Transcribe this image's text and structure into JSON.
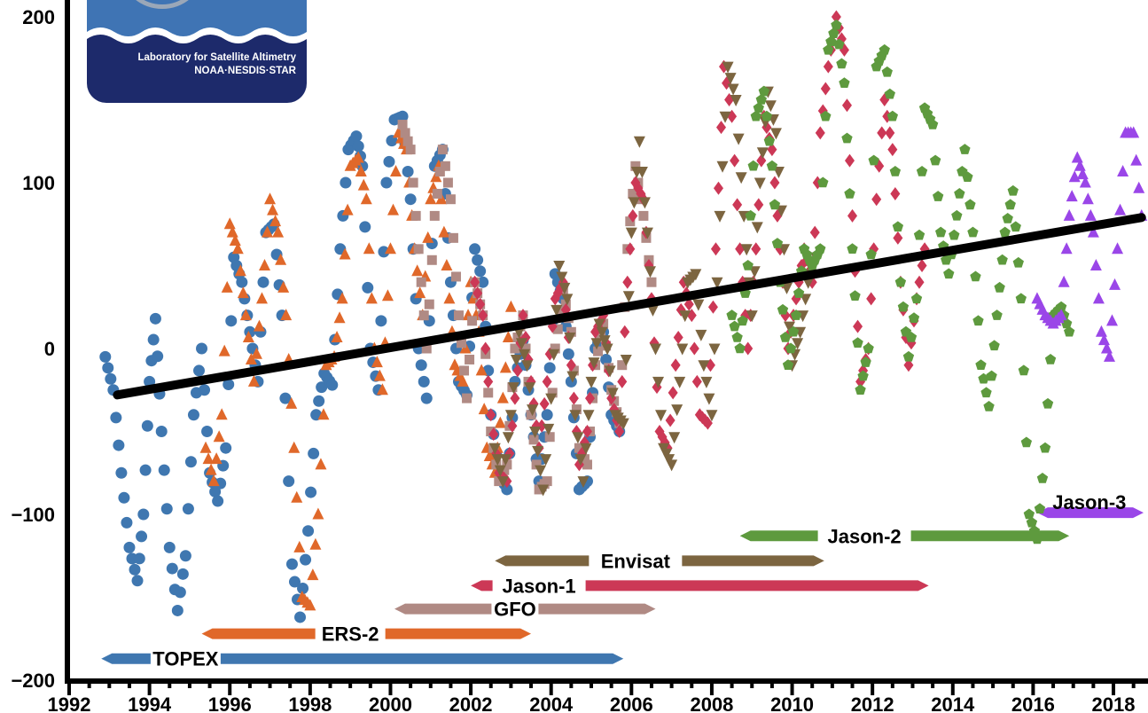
{
  "logo": {
    "line1": "Laboratory for Satellite Altimetry",
    "line2": "NOAA·NESDIS·STAR"
  },
  "colors": {
    "topex": "#3f77b0",
    "ers2": "#e0682a",
    "gfo": "#b08a84",
    "jason1": "#cc3856",
    "envisat": "#7c6540",
    "jason2": "#5e9a3e",
    "jason3": "#9a46e8",
    "trend": "#000000"
  },
  "chart_data": {
    "type": "scatter",
    "title": "",
    "xlabel": "",
    "ylabel": "",
    "xlim": [
      1992,
      2018.75
    ],
    "ylim": [
      -200,
      200
    ],
    "x_ticks": [
      "1992",
      "1994",
      "1996",
      "1998",
      "2000",
      "2002",
      "2004",
      "2006",
      "2008",
      "2010",
      "2012",
      "2014",
      "2016",
      "2018"
    ],
    "y_ticks": [
      "−200",
      "−100",
      "0",
      "100",
      "200"
    ],
    "trend_line": {
      "x": [
        1993.2,
        2018.7
      ],
      "y": [
        -28,
        79
      ]
    },
    "series": [
      {
        "name": "TOPEX",
        "marker": "circle",
        "color": "#3f77b0",
        "x": [
          1992.9,
          1993.1,
          1993.3,
          1993.5,
          1993.7,
          1993.85,
          1994.0,
          1994.15,
          1994.3,
          1994.5,
          1994.7,
          1994.9,
          1995.1,
          1995.3,
          1995.5,
          1995.7,
          1995.9,
          1996.1,
          1996.3,
          1996.5,
          1996.7,
          1996.9,
          1997.1,
          1997.3,
          1997.55,
          1997.75,
          1997.95,
          1998.15,
          1998.35,
          1998.55,
          1998.75,
          1998.95,
          1999.15,
          1999.3,
          1999.5,
          1999.7,
          1999.9,
          2000.1,
          2000.3,
          2000.5,
          2000.7,
          2000.9,
          2001.1,
          2001.3,
          2001.5,
          2001.7,
          2001.9,
          2002.1,
          2002.3,
          2002.5,
          2002.7,
          2002.9,
          2003.1,
          2003.3,
          2003.5,
          2003.7,
          2003.9,
          2004.1,
          2004.3,
          2004.5,
          2004.7,
          2004.9,
          2005.1,
          2005.3,
          2005.5,
          2005.7
        ],
        "y": [
          -5,
          -25,
          -75,
          -120,
          -140,
          -100,
          -20,
          18,
          -50,
          -120,
          -158,
          -125,
          -40,
          0,
          -75,
          -92,
          -60,
          55,
          40,
          10,
          -20,
          70,
          75,
          20,
          -130,
          -162,
          -110,
          -40,
          -15,
          -22,
          60,
          120,
          128,
          110,
          0,
          -25,
          100,
          138,
          140,
          90,
          0,
          -30,
          110,
          120,
          40,
          -20,
          -28,
          60,
          40,
          -40,
          -75,
          -85,
          -20,
          5,
          -40,
          -80,
          -40,
          45,
          30,
          -20,
          -85,
          -80,
          0,
          10,
          -40,
          -50
        ]
      },
      {
        "name": "ERS-2",
        "marker": "triangle-up",
        "color": "#e0682a",
        "x": [
          1995.4,
          1995.6,
          1995.8,
          1996.0,
          1996.2,
          1996.4,
          1996.6,
          1996.8,
          1997.0,
          1997.2,
          1997.4,
          1997.6,
          1997.8,
          1998.0,
          1998.2,
          1998.4,
          1998.6,
          1998.8,
          1999.0,
          1999.2,
          1999.4,
          1999.6,
          1999.8,
          2000.0,
          2000.2,
          2000.4,
          2000.6,
          2000.8,
          2001.0,
          2001.2,
          2001.4,
          2001.6,
          2001.8,
          2002.0,
          2002.2,
          2002.4,
          2002.6,
          2002.8,
          2003.0
        ],
        "y": [
          -60,
          -80,
          -40,
          75,
          60,
          20,
          -20,
          30,
          90,
          70,
          20,
          -60,
          -150,
          -155,
          -100,
          -10,
          -5,
          30,
          110,
          115,
          90,
          0,
          -25,
          60,
          130,
          120,
          60,
          20,
          90,
          110,
          50,
          -10,
          -20,
          40,
          10,
          -60,
          -75,
          -30,
          25
        ]
      },
      {
        "name": "GFO",
        "marker": "square",
        "color": "#b08a84",
        "x": [
          2000.3,
          2000.5,
          2000.7,
          2000.9,
          2001.1,
          2001.3,
          2001.5,
          2001.7,
          2001.9,
          2002.1,
          2002.3,
          2002.5,
          2002.7,
          2002.9,
          2003.1,
          2003.3,
          2003.5,
          2003.7,
          2003.9,
          2004.1,
          2004.3,
          2004.5,
          2004.7,
          2004.9,
          2005.1,
          2005.3,
          2005.5,
          2005.7,
          2005.9,
          2006.1,
          2006.3,
          2006.5
        ],
        "y": [
          135,
          120,
          60,
          0,
          80,
          120,
          90,
          20,
          -30,
          40,
          20,
          -50,
          -80,
          -70,
          0,
          20,
          -40,
          -85,
          -80,
          0,
          35,
          10,
          -60,
          -70,
          -10,
          15,
          -25,
          -45,
          60,
          110,
          80,
          40
        ]
      },
      {
        "name": "Jason-1",
        "marker": "diamond",
        "color": "#cc3856",
        "x": [
          2002.1,
          2002.3,
          2002.5,
          2002.7,
          2002.9,
          2003.1,
          2003.3,
          2003.5,
          2003.7,
          2003.9,
          2004.1,
          2004.3,
          2004.5,
          2004.7,
          2004.9,
          2005.1,
          2005.3,
          2005.5,
          2005.7,
          2005.9,
          2006.1,
          2006.3,
          2006.5,
          2006.7,
          2006.9,
          2007.1,
          2007.3,
          2007.5,
          2007.7,
          2007.9,
          2008.1,
          2008.3,
          2008.5,
          2008.7,
          2008.9,
          2009.1,
          2009.3,
          2009.5,
          2009.7,
          2009.9,
          2010.1,
          2010.3,
          2010.5,
          2010.7,
          2010.9,
          2011.1,
          2011.3,
          2011.5,
          2011.7,
          2011.9,
          2012.1,
          2012.3,
          2012.5,
          2012.7,
          2012.9,
          2013.1,
          2013.3
        ],
        "y": [
          40,
          20,
          -40,
          -75,
          -80,
          -30,
          20,
          -20,
          -60,
          -20,
          30,
          40,
          -10,
          -70,
          -50,
          10,
          20,
          -30,
          -50,
          40,
          100,
          90,
          30,
          -50,
          -60,
          -10,
          40,
          20,
          -40,
          -45,
          60,
          170,
          140,
          60,
          0,
          60,
          140,
          120,
          60,
          0,
          30,
          60,
          40,
          130,
          170,
          200,
          180,
          80,
          -20,
          0,
          90,
          150,
          120,
          40,
          -10,
          30,
          60
        ]
      },
      {
        "name": "Envisat",
        "marker": "triangle-down",
        "color": "#7c6540",
        "x": [
          2002.6,
          2002.8,
          2003.0,
          2003.2,
          2003.4,
          2003.6,
          2003.8,
          2004.0,
          2004.2,
          2004.4,
          2004.6,
          2004.8,
          2005.0,
          2005.2,
          2005.4,
          2005.6,
          2005.8,
          2006.0,
          2006.2,
          2006.4,
          2006.6,
          2006.8,
          2007.0,
          2007.2,
          2007.4,
          2007.6,
          2007.8,
          2008.0,
          2008.2,
          2008.4,
          2008.6,
          2008.8,
          2009.0,
          2009.2,
          2009.4,
          2009.6,
          2009.8,
          2010.0,
          2010.2,
          2010.4,
          2010.6
        ],
        "y": [
          -60,
          -80,
          -40,
          10,
          -10,
          -50,
          -85,
          -30,
          50,
          30,
          -40,
          -80,
          -20,
          15,
          0,
          -40,
          -45,
          70,
          125,
          70,
          0,
          -60,
          -70,
          -20,
          40,
          45,
          -10,
          -40,
          80,
          170,
          150,
          80,
          20,
          100,
          155,
          130,
          60,
          -10,
          10,
          40,
          55
        ]
      },
      {
        "name": "Jason-2",
        "marker": "pentagon",
        "color": "#5e9a3e",
        "x": [
          2008.5,
          2008.7,
          2008.9,
          2009.1,
          2009.3,
          2009.5,
          2009.7,
          2009.9,
          2010.1,
          2010.3,
          2010.5,
          2010.7,
          2010.9,
          2011.1,
          2011.3,
          2011.5,
          2011.7,
          2011.9,
          2012.1,
          2012.3,
          2012.5,
          2012.7,
          2012.9,
          2013.1,
          2013.3,
          2013.5,
          2013.7,
          2013.9,
          2014.1,
          2014.3,
          2014.5,
          2014.7,
          2014.9,
          2015.1,
          2015.3,
          2015.5,
          2015.7,
          2015.9,
          2016.1,
          2016.3,
          2016.5,
          2016.7,
          2016.9
        ],
        "y": [
          20,
          0,
          50,
          140,
          155,
          110,
          40,
          -10,
          20,
          60,
          50,
          60,
          180,
          195,
          160,
          60,
          -25,
          0,
          170,
          180,
          140,
          40,
          -5,
          30,
          145,
          135,
          70,
          45,
          80,
          120,
          70,
          -10,
          -35,
          20,
          70,
          95,
          30,
          -100,
          -115,
          -60,
          20,
          25,
          10
        ]
      },
      {
        "name": "Jason-3",
        "marker": "triangle-up",
        "color": "#9a46e8",
        "x": [
          2016.1,
          2016.3,
          2016.5,
          2016.7,
          2016.9,
          2017.1,
          2017.3,
          2017.5,
          2017.7,
          2017.9,
          2018.1,
          2018.3,
          2018.5,
          2018.7
        ],
        "y": [
          30,
          20,
          15,
          20,
          80,
          115,
          100,
          70,
          10,
          -5,
          60,
          130,
          130,
          80
        ]
      }
    ],
    "missions": [
      {
        "name": "TOPEX",
        "start": 1992.8,
        "end": 2005.8,
        "y": -187,
        "color": "#3f77b0"
      },
      {
        "name": "ERS-2",
        "start": 1995.3,
        "end": 2003.5,
        "y": -172,
        "color": "#e0682a"
      },
      {
        "name": "GFO",
        "start": 2000.1,
        "end": 2006.6,
        "y": -157,
        "color": "#b08a84"
      },
      {
        "name": "Jason-1",
        "start": 2002.0,
        "end": 2013.4,
        "y": -143,
        "color": "#cc3856"
      },
      {
        "name": "Envisat",
        "start": 2002.6,
        "end": 2010.8,
        "y": -128,
        "color": "#7c6540"
      },
      {
        "name": "Jason-2",
        "start": 2008.7,
        "end": 2016.9,
        "y": -113,
        "color": "#5e9a3e"
      },
      {
        "name": "Jason-3",
        "start": 2016.1,
        "end": 2018.75,
        "y": -99,
        "color": "#9a46e8"
      }
    ]
  }
}
